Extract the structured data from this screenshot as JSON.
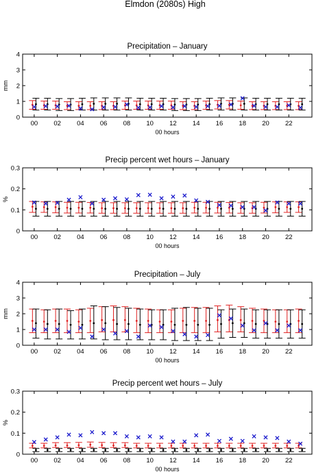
{
  "figure_title": "Elmdon (2080s) High",
  "colors": {
    "red": "#e02020",
    "black": "#000000",
    "blue": "#1a1acc"
  },
  "chart_data": [
    {
      "type": "scatter",
      "title": "Precipitation – January",
      "xlabel": "00 hours",
      "ylabel": "mm",
      "xlim": [
        -1,
        24
      ],
      "ylim": [
        0,
        4
      ],
      "yticks": [
        "0",
        "1",
        "2",
        "3",
        "4"
      ],
      "xticks": [
        "00",
        "02",
        "04",
        "06",
        "08",
        "10",
        "12",
        "14",
        "16",
        "18",
        "20",
        "22"
      ],
      "series": [
        {
          "kind": "errorbar",
          "color": "red",
          "offset": -0.15,
          "center": [
            0.78,
            0.75,
            0.75,
            0.72,
            0.72,
            0.72,
            0.72,
            0.72,
            0.75,
            0.75,
            0.75,
            0.75,
            0.75,
            0.72,
            0.72,
            0.75,
            0.78,
            0.78,
            0.75,
            0.72,
            0.72,
            0.72,
            0.72,
            0.72
          ],
          "low": [
            0.5,
            0.5,
            0.5,
            0.48,
            0.48,
            0.48,
            0.48,
            0.48,
            0.5,
            0.5,
            0.5,
            0.5,
            0.5,
            0.48,
            0.48,
            0.5,
            0.52,
            0.52,
            0.5,
            0.48,
            0.48,
            0.48,
            0.48,
            0.48
          ],
          "high": [
            1.05,
            1.02,
            1.02,
            0.98,
            0.98,
            0.98,
            0.98,
            0.98,
            1.02,
            1.02,
            1.02,
            1.02,
            1.02,
            0.98,
            0.98,
            1.02,
            1.05,
            1.05,
            1.02,
            0.98,
            0.98,
            0.98,
            0.98,
            0.98
          ]
        },
        {
          "kind": "errorbar",
          "color": "black",
          "offset": 0.15,
          "center": [
            0.82,
            0.82,
            0.8,
            0.8,
            0.82,
            0.85,
            0.85,
            0.85,
            0.85,
            0.82,
            0.82,
            0.82,
            0.8,
            0.8,
            0.8,
            0.82,
            0.85,
            0.85,
            0.85,
            0.82,
            0.82,
            0.82,
            0.82,
            0.82
          ],
          "low": [
            0.45,
            0.45,
            0.42,
            0.42,
            0.45,
            0.45,
            0.45,
            0.45,
            0.45,
            0.45,
            0.45,
            0.45,
            0.42,
            0.42,
            0.42,
            0.45,
            0.45,
            0.45,
            0.45,
            0.45,
            0.45,
            0.45,
            0.45,
            0.45
          ],
          "high": [
            1.2,
            1.2,
            1.18,
            1.18,
            1.2,
            1.22,
            1.22,
            1.22,
            1.22,
            1.2,
            1.2,
            1.2,
            1.18,
            1.18,
            1.18,
            1.2,
            1.22,
            1.22,
            1.22,
            1.2,
            1.2,
            1.2,
            1.2,
            1.2
          ]
        },
        {
          "kind": "cross",
          "color": "blue",
          "offset": 0,
          "values": [
            0.65,
            0.7,
            0.68,
            0.72,
            0.55,
            0.5,
            0.62,
            0.65,
            0.8,
            0.6,
            0.62,
            0.7,
            0.62,
            0.7,
            0.65,
            0.7,
            0.72,
            0.8,
            1.2,
            0.72,
            0.65,
            0.65,
            0.75,
            0.6
          ]
        }
      ]
    },
    {
      "type": "scatter",
      "title": "Precip percent wet hours – January",
      "xlabel": "00 hours",
      "ylabel": "%",
      "xlim": [
        -1,
        24
      ],
      "ylim": [
        0,
        0.3
      ],
      "yticks": [
        "0",
        "0.1",
        "0.2",
        "0.3"
      ],
      "xticks": [
        "00",
        "02",
        "04",
        "06",
        "08",
        "10",
        "12",
        "14",
        "16",
        "18",
        "20",
        "22"
      ],
      "series": [
        {
          "kind": "errorbar",
          "color": "red",
          "offset": -0.15,
          "center": [
            0.115,
            0.113,
            0.113,
            0.11,
            0.11,
            0.11,
            0.108,
            0.108,
            0.108,
            0.108,
            0.108,
            0.108,
            0.108,
            0.108,
            0.11,
            0.11,
            0.11,
            0.11,
            0.108,
            0.108,
            0.11,
            0.113,
            0.113,
            0.113
          ],
          "low": [
            0.088,
            0.088,
            0.086,
            0.085,
            0.085,
            0.085,
            0.084,
            0.084,
            0.084,
            0.084,
            0.084,
            0.084,
            0.084,
            0.084,
            0.085,
            0.085,
            0.085,
            0.085,
            0.084,
            0.084,
            0.085,
            0.086,
            0.088,
            0.088
          ],
          "high": [
            0.14,
            0.138,
            0.138,
            0.136,
            0.136,
            0.135,
            0.134,
            0.134,
            0.134,
            0.134,
            0.134,
            0.134,
            0.134,
            0.134,
            0.136,
            0.136,
            0.136,
            0.135,
            0.134,
            0.134,
            0.136,
            0.138,
            0.138,
            0.138
          ]
        },
        {
          "kind": "errorbar",
          "color": "black",
          "offset": 0.15,
          "center": [
            0.105,
            0.105,
            0.105,
            0.105,
            0.105,
            0.105,
            0.105,
            0.105,
            0.105,
            0.105,
            0.105,
            0.105,
            0.105,
            0.105,
            0.105,
            0.105,
            0.105,
            0.105,
            0.105,
            0.105,
            0.105,
            0.105,
            0.105,
            0.105
          ],
          "low": [
            0.07,
            0.07,
            0.07,
            0.07,
            0.07,
            0.07,
            0.07,
            0.07,
            0.07,
            0.07,
            0.07,
            0.07,
            0.07,
            0.07,
            0.07,
            0.07,
            0.07,
            0.07,
            0.07,
            0.07,
            0.07,
            0.07,
            0.07,
            0.07
          ],
          "high": [
            0.14,
            0.14,
            0.14,
            0.14,
            0.14,
            0.14,
            0.14,
            0.14,
            0.14,
            0.14,
            0.14,
            0.14,
            0.14,
            0.14,
            0.14,
            0.14,
            0.14,
            0.14,
            0.14,
            0.14,
            0.14,
            0.14,
            0.14,
            0.14
          ]
        },
        {
          "kind": "cross",
          "color": "blue",
          "offset": 0,
          "values": [
            0.135,
            0.13,
            0.133,
            0.148,
            0.16,
            0.13,
            0.148,
            0.155,
            0.15,
            0.17,
            0.172,
            0.155,
            0.163,
            0.168,
            0.145,
            0.138,
            0.123,
            0.12,
            0.113,
            0.113,
            0.097,
            0.135,
            0.13,
            0.13
          ]
        }
      ]
    },
    {
      "type": "scatter",
      "title": "Precipitation – July",
      "xlabel": "00 hours",
      "ylabel": "mm",
      "xlim": [
        -1,
        24
      ],
      "ylim": [
        0,
        4
      ],
      "yticks": [
        "0",
        "1",
        "2",
        "3",
        "4"
      ],
      "xticks": [
        "00",
        "02",
        "04",
        "06",
        "08",
        "10",
        "12",
        "14",
        "16",
        "18",
        "20",
        "22"
      ],
      "series": [
        {
          "kind": "errorbar",
          "color": "red",
          "offset": -0.15,
          "center": [
            1.55,
            1.5,
            1.55,
            1.55,
            1.5,
            1.55,
            1.6,
            1.6,
            1.6,
            1.55,
            1.55,
            1.5,
            1.5,
            1.55,
            1.55,
            1.55,
            1.6,
            1.6,
            1.6,
            1.55,
            1.55,
            1.5,
            1.5,
            1.55
          ],
          "low": [
            0.8,
            0.8,
            0.8,
            0.8,
            0.8,
            0.8,
            0.85,
            0.85,
            0.85,
            0.8,
            0.8,
            0.8,
            0.8,
            0.8,
            0.8,
            0.8,
            0.85,
            0.85,
            0.85,
            0.8,
            0.8,
            0.8,
            0.8,
            0.8
          ],
          "high": [
            2.3,
            2.25,
            2.3,
            2.3,
            2.25,
            2.35,
            2.45,
            2.5,
            2.45,
            2.35,
            2.3,
            2.25,
            2.25,
            2.35,
            2.4,
            2.4,
            2.5,
            2.55,
            2.45,
            2.35,
            2.3,
            2.25,
            2.25,
            2.3
          ]
        },
        {
          "kind": "errorbar",
          "color": "black",
          "offset": 0.15,
          "center": [
            1.4,
            1.35,
            1.35,
            1.3,
            1.3,
            1.4,
            1.4,
            1.35,
            1.35,
            1.3,
            1.3,
            1.3,
            1.3,
            1.3,
            1.3,
            1.3,
            1.35,
            1.4,
            1.4,
            1.35,
            1.35,
            1.35,
            1.35,
            1.35
          ],
          "low": [
            0.45,
            0.4,
            0.4,
            0.4,
            0.4,
            0.4,
            0.35,
            0.35,
            0.35,
            0.35,
            0.35,
            0.35,
            0.3,
            0.3,
            0.3,
            0.3,
            0.45,
            0.5,
            0.5,
            0.45,
            0.45,
            0.45,
            0.45,
            0.45
          ],
          "high": [
            2.3,
            2.25,
            2.3,
            2.2,
            2.3,
            2.5,
            2.45,
            2.4,
            2.35,
            2.3,
            2.25,
            2.25,
            2.35,
            2.4,
            2.35,
            2.35,
            2.25,
            2.3,
            2.3,
            2.25,
            2.25,
            2.25,
            2.25,
            2.25
          ]
        },
        {
          "kind": "cross",
          "color": "blue",
          "offset": 0,
          "values": [
            1.0,
            1.0,
            1.0,
            0.85,
            1.1,
            0.55,
            1.0,
            0.75,
            0.9,
            0.55,
            1.25,
            1.15,
            0.9,
            0.7,
            0.55,
            0.65,
            1.9,
            1.7,
            1.25,
            0.95,
            1.4,
            0.95,
            1.25,
            0.95
          ]
        }
      ]
    },
    {
      "type": "scatter",
      "title": "Precip percent wet hours – July",
      "xlabel": "00 hours",
      "ylabel": "%",
      "xlim": [
        -1,
        24
      ],
      "ylim": [
        0,
        0.3
      ],
      "yticks": [
        "0",
        "0.1",
        "0.2",
        "0.3"
      ],
      "xticks": [
        "00",
        "02",
        "04",
        "06",
        "08",
        "10",
        "12",
        "14",
        "16",
        "18",
        "20",
        "22"
      ],
      "series": [
        {
          "kind": "errorbar",
          "color": "red",
          "offset": -0.15,
          "center": [
            0.04,
            0.04,
            0.042,
            0.042,
            0.043,
            0.045,
            0.043,
            0.042,
            0.042,
            0.04,
            0.04,
            0.04,
            0.04,
            0.04,
            0.04,
            0.04,
            0.04,
            0.04,
            0.04,
            0.04,
            0.04,
            0.04,
            0.04,
            0.04
          ],
          "low": [
            0.03,
            0.03,
            0.032,
            0.032,
            0.032,
            0.033,
            0.032,
            0.032,
            0.032,
            0.03,
            0.03,
            0.03,
            0.03,
            0.03,
            0.03,
            0.03,
            0.03,
            0.03,
            0.03,
            0.03,
            0.03,
            0.03,
            0.03,
            0.03
          ],
          "high": [
            0.052,
            0.052,
            0.055,
            0.055,
            0.056,
            0.058,
            0.056,
            0.055,
            0.055,
            0.052,
            0.052,
            0.052,
            0.052,
            0.052,
            0.052,
            0.052,
            0.052,
            0.052,
            0.052,
            0.052,
            0.052,
            0.052,
            0.052,
            0.052
          ]
        },
        {
          "kind": "errorbar",
          "color": "black",
          "offset": 0.15,
          "center": [
            0.02,
            0.02,
            0.02,
            0.02,
            0.02,
            0.02,
            0.02,
            0.02,
            0.02,
            0.02,
            0.02,
            0.02,
            0.02,
            0.02,
            0.02,
            0.02,
            0.02,
            0.02,
            0.02,
            0.02,
            0.02,
            0.02,
            0.02,
            0.02
          ],
          "low": [
            0.012,
            0.012,
            0.012,
            0.012,
            0.012,
            0.012,
            0.012,
            0.012,
            0.012,
            0.012,
            0.012,
            0.012,
            0.012,
            0.012,
            0.012,
            0.012,
            0.012,
            0.012,
            0.012,
            0.012,
            0.012,
            0.012,
            0.012,
            0.012
          ],
          "high": [
            0.028,
            0.028,
            0.028,
            0.028,
            0.028,
            0.028,
            0.028,
            0.028,
            0.028,
            0.028,
            0.028,
            0.028,
            0.028,
            0.028,
            0.028,
            0.028,
            0.028,
            0.028,
            0.028,
            0.028,
            0.028,
            0.028,
            0.028,
            0.028
          ]
        },
        {
          "kind": "cross",
          "color": "blue",
          "offset": 0,
          "values": [
            0.058,
            0.07,
            0.08,
            0.093,
            0.09,
            0.105,
            0.1,
            0.1,
            0.085,
            0.08,
            0.085,
            0.08,
            0.06,
            0.06,
            0.09,
            0.093,
            0.063,
            0.073,
            0.063,
            0.085,
            0.08,
            0.077,
            0.06,
            0.05
          ]
        }
      ]
    }
  ]
}
